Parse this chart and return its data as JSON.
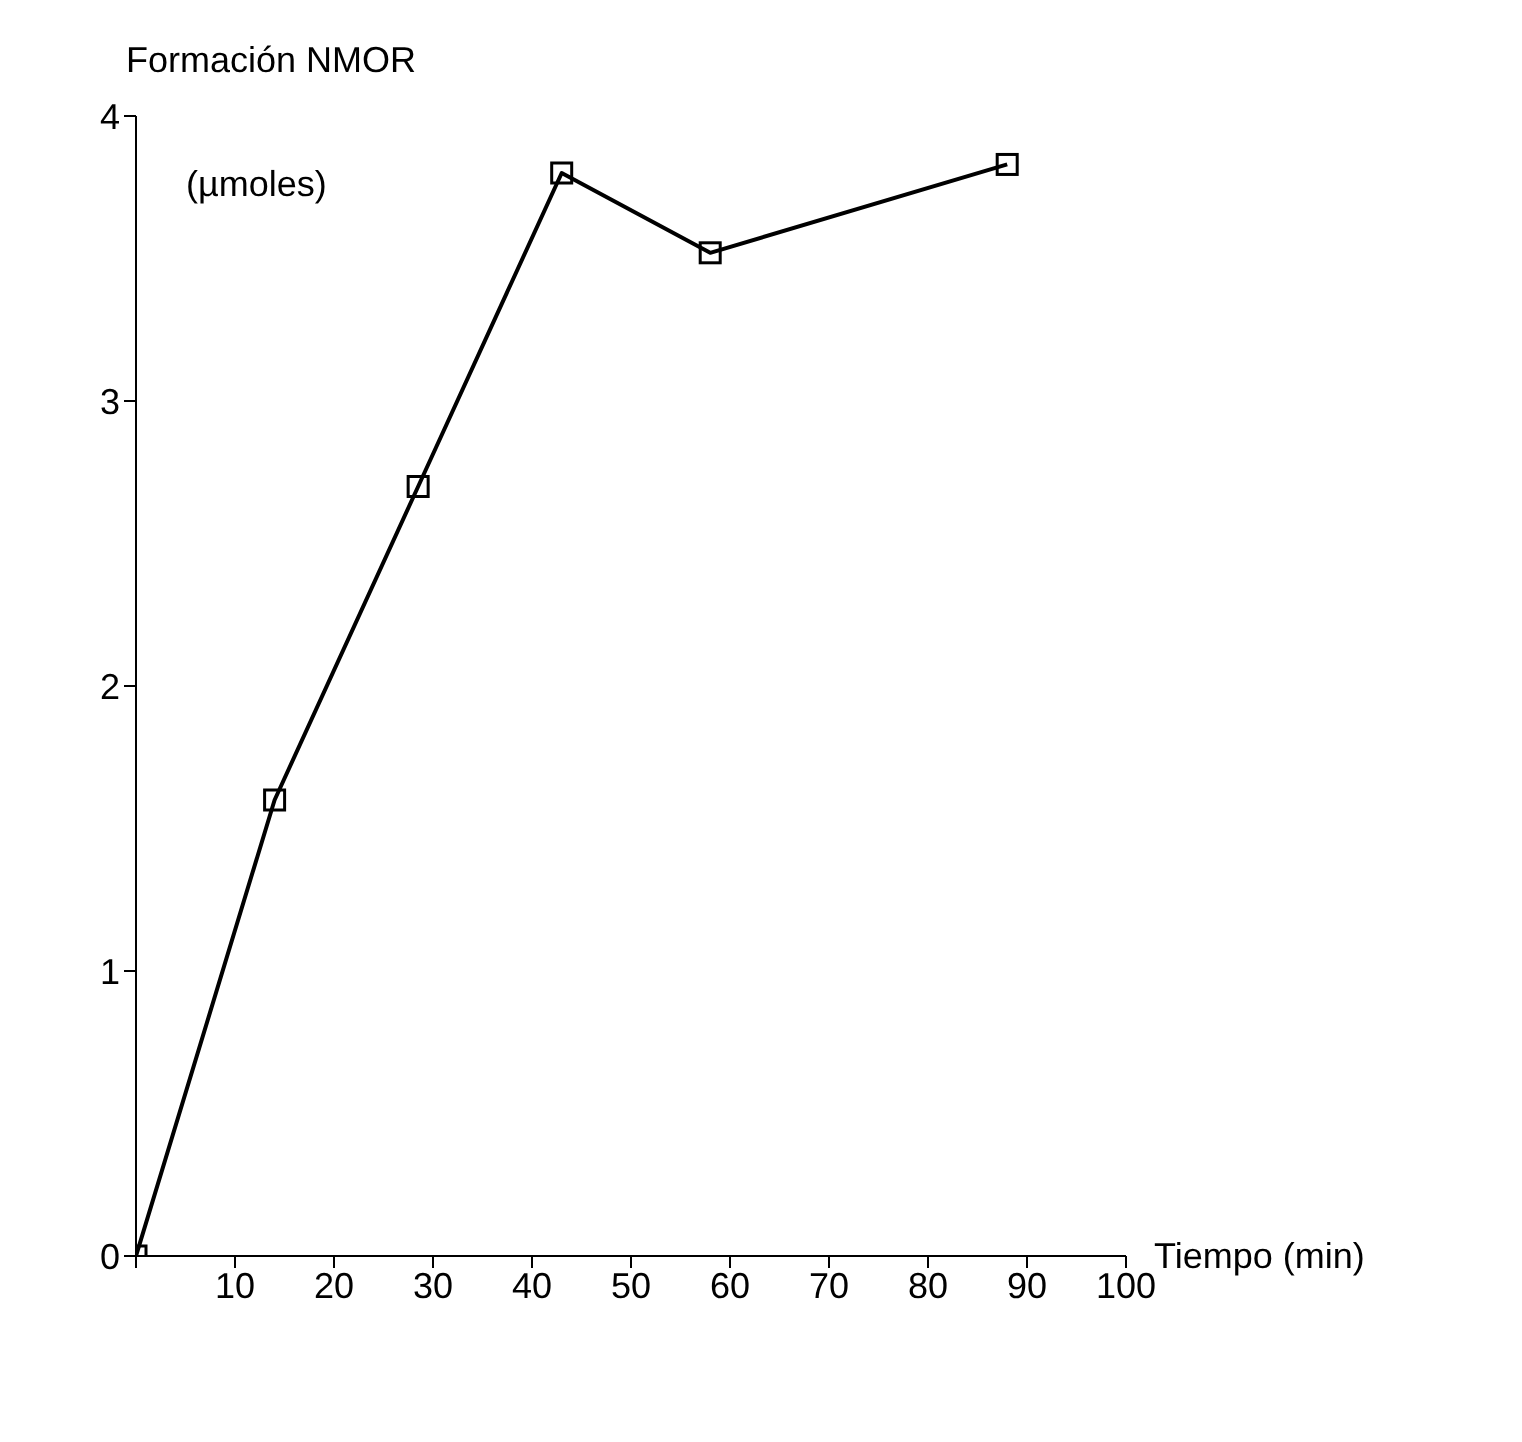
{
  "chart_data": {
    "type": "line",
    "ylabel": "Formación NMOR",
    "xlabel": "Tiempo (min)",
    "annotations": [
      "(µmoles)"
    ],
    "x": [
      0,
      14,
      28.5,
      43,
      58,
      88
    ],
    "series": [
      {
        "color": "#000000",
        "values": [
          0,
          1.6,
          2.7,
          3.8,
          3.52,
          3.83
        ]
      }
    ],
    "xlim": [
      0,
      100
    ],
    "xticks": [
      {
        "value": 0,
        "label": null
      },
      10,
      20,
      30,
      40,
      50,
      60,
      70,
      80,
      90,
      100
    ],
    "ylim": [
      0,
      4
    ],
    "yticks": [
      0,
      1,
      2,
      3,
      4
    ],
    "marker": "square",
    "line_style": "solid",
    "grid": false,
    "legend": false
  }
}
